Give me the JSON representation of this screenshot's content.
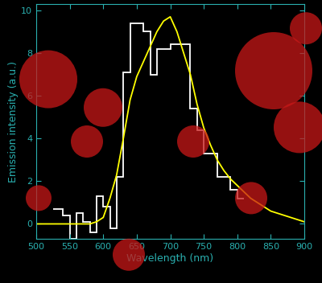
{
  "chart_data": {
    "type": "line",
    "x_label": "Wavelength (nm)",
    "y_label": "Emission intensity (a.u.)",
    "xlim": [
      500,
      900
    ],
    "xticks": [
      500,
      550,
      600,
      650,
      700,
      750,
      800,
      850,
      900
    ],
    "ylim": [
      -0.7,
      10.3
    ],
    "yticks": [
      0,
      2,
      4,
      6,
      8,
      10
    ],
    "grid": false,
    "series": [
      {
        "type": "histogram",
        "color": "#ffffff",
        "bins": [
          525,
          540,
          550,
          560,
          570,
          580,
          590,
          600,
          610,
          620,
          630,
          640,
          650,
          660,
          670,
          680,
          690,
          700,
          710,
          720,
          730,
          740,
          750,
          760,
          770,
          780,
          790,
          800,
          810
        ],
        "values": [
          0.7,
          0.4,
          -0.7,
          0.5,
          0.1,
          -0.4,
          1.3,
          0.8,
          -0.2,
          2.2,
          7.1,
          9.4,
          9.4,
          9.0,
          7.0,
          8.2,
          8.2,
          8.4,
          8.4,
          8.4,
          5.4,
          4.4,
          3.3,
          3.3,
          2.2,
          2.2,
          1.6,
          1.2
        ]
      },
      {
        "type": "line",
        "color": "#ffff00",
        "line_style": "solid",
        "x": [
          500,
          510,
          520,
          530,
          540,
          550,
          560,
          570,
          580,
          590,
          600,
          610,
          620,
          630,
          640,
          650,
          660,
          670,
          680,
          690,
          700,
          710,
          720,
          730,
          740,
          750,
          760,
          770,
          780,
          790,
          800,
          810,
          820,
          830,
          840,
          850,
          860,
          870,
          880,
          890,
          900
        ],
        "values": [
          0,
          0,
          0,
          0,
          0,
          0,
          0,
          0,
          0,
          0.1,
          0.3,
          1.2,
          2.3,
          4.0,
          5.8,
          6.9,
          7.6,
          8.3,
          9.0,
          9.5,
          9.7,
          9.0,
          8.0,
          7.0,
          5.6,
          4.5,
          3.7,
          3.0,
          2.5,
          2.1,
          1.8,
          1.5,
          1.2,
          1.0,
          0.8,
          0.6,
          0.5,
          0.4,
          0.3,
          0.2,
          0.1
        ]
      }
    ]
  }
}
